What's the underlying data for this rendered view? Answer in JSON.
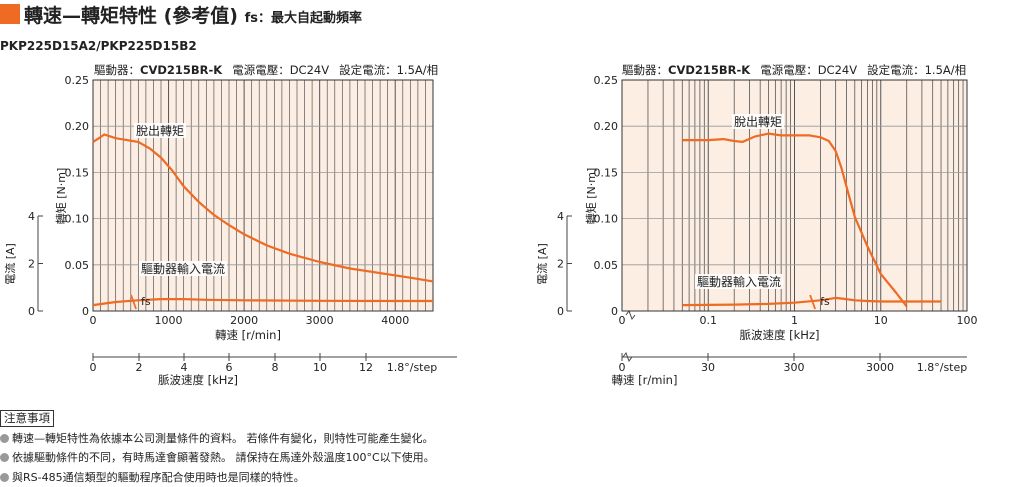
{
  "header": {
    "title": "轉速—轉矩特性 (參考值)",
    "fs_note": "fs：最大自起動頻率"
  },
  "model": "PKP225D15A2/PKP225D15B2",
  "chart_data": [
    {
      "type": "line",
      "info": {
        "driver_label": "驅動器：",
        "driver": "CVD215BR-K",
        "voltage": "電源電壓：DC24V",
        "current_setting": "設定電流：1.5A/相"
      },
      "x": {
        "label": "轉速 [r/min]",
        "range": [
          0,
          4500
        ],
        "ticks": [
          0,
          1000,
          2000,
          3000,
          4000
        ],
        "scale": "linear"
      },
      "x2": {
        "label": "脈波速度 [kHz]",
        "ticks": [
          "0",
          "2",
          "4",
          "6",
          "8",
          "10",
          "12"
        ],
        "tick_values": [
          0,
          2,
          4,
          6,
          8,
          10,
          12
        ],
        "unit_note": "1.8°/step"
      },
      "y_torque": {
        "label": "轉矩 [N·m]",
        "range": [
          0,
          0.25
        ],
        "ticks": [
          "0",
          "0.05",
          "0.10",
          "0.15",
          "0.20",
          "0.25"
        ]
      },
      "y_current": {
        "label": "電流 [A]",
        "range": [
          0,
          4
        ],
        "ticks": [
          "0",
          "2",
          "4"
        ]
      },
      "series": [
        {
          "name": "脫出轉矩",
          "axis": "torque",
          "color": "#ef6a22",
          "x": [
            0,
            60,
            150,
            300,
            450,
            600,
            750,
            900,
            1050,
            1200,
            1400,
            1600,
            1800,
            2000,
            2300,
            2600,
            3000,
            3400,
            3800,
            4200,
            4500
          ],
          "y": [
            0.183,
            0.186,
            0.191,
            0.187,
            0.185,
            0.183,
            0.176,
            0.166,
            0.152,
            0.135,
            0.118,
            0.104,
            0.093,
            0.083,
            0.071,
            0.062,
            0.053,
            0.046,
            0.041,
            0.036,
            0.032
          ]
        },
        {
          "name": "驅動器輸入電流",
          "axis": "current",
          "color": "#ef6a22",
          "x": [
            0,
            300,
            600,
            900,
            1200,
            1500,
            2000,
            3000,
            4000,
            4500
          ],
          "y": [
            0.25,
            0.38,
            0.45,
            0.5,
            0.5,
            0.47,
            0.45,
            0.43,
            0.42,
            0.42
          ]
        }
      ],
      "fs": {
        "label": "fs",
        "x": 530
      },
      "grid": true
    },
    {
      "type": "line",
      "info": {
        "driver_label": "驅動器：",
        "driver": "CVD215BR-K",
        "voltage": "電源電壓：DC24V",
        "current_setting": "設定電流：1.5A/相"
      },
      "x": {
        "label": "脈波速度 [kHz]",
        "range": [
          0.01,
          100
        ],
        "ticks": [
          "0",
          "0.1",
          "1",
          "10",
          "100"
        ],
        "scale": "log"
      },
      "x2": {
        "label": "轉速 [r/min]",
        "ticks": [
          "0",
          "30",
          "300",
          "3000"
        ],
        "tick_values": [
          0,
          30,
          300,
          3000
        ],
        "unit_note": "1.8°/step"
      },
      "y_torque": {
        "label": "轉矩 [N·m]",
        "range": [
          0,
          0.25
        ],
        "ticks": [
          "0",
          "0.05",
          "0.10",
          "0.15",
          "0.20",
          "0.25"
        ]
      },
      "y_current": {
        "label": "電流 [A]",
        "range": [
          0,
          4
        ],
        "ticks": [
          "0",
          "2",
          "4"
        ]
      },
      "series": [
        {
          "name": "脫出轉矩",
          "axis": "torque",
          "color": "#ef6a22",
          "x": [
            0.05,
            0.1,
            0.15,
            0.2,
            0.25,
            0.35,
            0.5,
            0.7,
            1.0,
            1.5,
            2.0,
            2.5,
            3.0,
            3.5,
            4.0,
            5.0,
            7.0,
            10,
            15,
            20
          ],
          "y": [
            0.185,
            0.185,
            0.186,
            0.184,
            0.183,
            0.189,
            0.192,
            0.19,
            0.19,
            0.19,
            0.188,
            0.184,
            0.173,
            0.155,
            0.135,
            0.102,
            0.07,
            0.04,
            0.02,
            0.005
          ]
        },
        {
          "name": "驅動器輸入電流",
          "axis": "current",
          "color": "#ef6a22",
          "x": [
            0.05,
            0.2,
            0.5,
            1.0,
            2.0,
            3.0,
            4.0,
            5.0,
            7.0,
            10,
            20,
            50
          ],
          "y": [
            0.25,
            0.27,
            0.3,
            0.35,
            0.45,
            0.55,
            0.5,
            0.45,
            0.42,
            0.4,
            0.4,
            0.4
          ]
        }
      ],
      "fs": {
        "label": "fs",
        "x": 1.6
      },
      "grid": true
    }
  ],
  "notes": {
    "title": "注意事項",
    "items": [
      "轉速—轉矩特性為依據本公司測量條件的資料。 若條件有變化，則特性可能產生變化。",
      "依據驅動條件的不同，有時馬達會顯著發熱。 請保持在馬達外殼溫度100°C以下使用。",
      "與RS-485通信類型的驅動程序配合使用時也是同樣的特性。"
    ]
  }
}
